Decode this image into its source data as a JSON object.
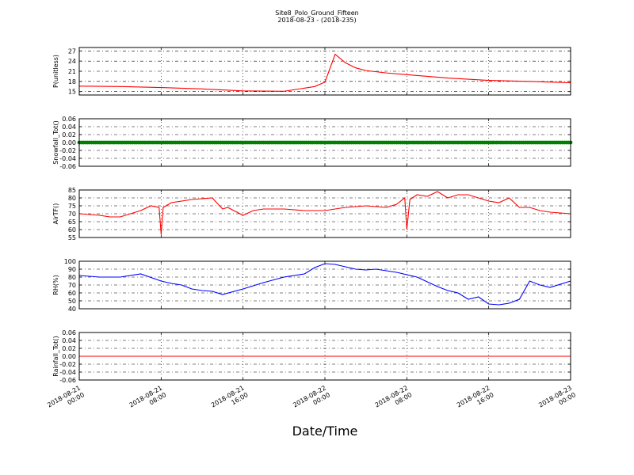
{
  "figure": {
    "title_line1": "Site8_Polo_Ground_Fifteen",
    "title_line2": "2018-08-23 - (2018-235)",
    "xlabel": "Date/Time"
  },
  "chart_data": [
    {
      "type": "line",
      "ylabel": "P(unitless)",
      "color": "#ff0000",
      "ylim": [
        14,
        28
      ],
      "yticks": [
        15,
        18,
        21,
        24,
        27
      ],
      "x_hours": [
        0,
        4,
        8,
        12,
        16,
        20,
        23,
        24,
        25,
        26,
        27,
        28,
        30,
        32,
        36,
        40,
        44,
        48
      ],
      "values": [
        16.6,
        16.5,
        16.2,
        15.8,
        15.2,
        15.1,
        16.5,
        17.8,
        26.0,
        23.5,
        22.0,
        21.2,
        20.5,
        20.0,
        19.0,
        18.3,
        18.0,
        17.6
      ],
      "grid": true
    },
    {
      "type": "scatter",
      "ylabel": "Snowfall_Tot()",
      "color": "#008000",
      "ylim": [
        -0.06,
        0.06
      ],
      "yticks": [
        "0.06",
        "0.04",
        "0.02",
        "0.00",
        "-0.02",
        "-0.04",
        "-0.06"
      ],
      "x_hours_range": [
        0,
        48
      ],
      "values": [
        0.0
      ],
      "grid": true
    },
    {
      "type": "line",
      "ylabel": "AirTF()",
      "color": "#ff0000",
      "ylim": [
        55,
        85
      ],
      "yticks": [
        55,
        60,
        65,
        70,
        75,
        80,
        85
      ],
      "x_hours": [
        0,
        2,
        3,
        4,
        6,
        7,
        7.8,
        8,
        8.2,
        9,
        11,
        13,
        14,
        14.5,
        16,
        17,
        18,
        20,
        22,
        24,
        26,
        28,
        30,
        31,
        31.8,
        32,
        32.3,
        33,
        34,
        35,
        36,
        37,
        38,
        39,
        40,
        41,
        42,
        43,
        44,
        45,
        46,
        48
      ],
      "values": [
        70,
        69,
        68,
        68,
        72,
        75,
        74,
        57,
        74,
        77,
        79,
        80,
        73,
        74,
        69,
        72,
        73,
        73,
        72,
        72,
        74,
        75,
        74,
        76,
        80,
        60,
        79,
        82,
        81,
        84,
        80,
        82,
        82,
        80,
        78,
        77,
        80,
        74,
        74,
        72,
        71,
        70
      ],
      "grid": true
    },
    {
      "type": "line",
      "ylabel": "RH(%)",
      "color": "#0000ff",
      "ylim": [
        40,
        100
      ],
      "yticks": [
        40,
        50,
        60,
        70,
        80,
        90,
        100
      ],
      "x_hours": [
        0,
        2,
        4,
        6,
        8,
        9,
        10,
        11,
        12,
        13,
        14,
        16,
        18,
        20,
        22,
        23,
        24,
        25,
        26,
        27,
        28,
        29,
        30,
        31,
        32,
        33,
        34,
        35,
        36,
        37,
        38,
        39,
        40,
        41,
        42,
        43,
        44,
        45,
        46,
        48
      ],
      "values": [
        82,
        80,
        80,
        84,
        75,
        72,
        70,
        65,
        63,
        62,
        58,
        65,
        73,
        80,
        84,
        92,
        97,
        96,
        93,
        90,
        89,
        90,
        88,
        86,
        83,
        80,
        74,
        68,
        63,
        60,
        52,
        55,
        46,
        45,
        47,
        52,
        75,
        70,
        67,
        75
      ],
      "grid": true
    },
    {
      "type": "line",
      "ylabel": "Rainfall_Tot()",
      "color": "#ff0000",
      "ylim": [
        -0.06,
        0.06
      ],
      "yticks": [
        "0.06",
        "0.04",
        "0.02",
        "0.00",
        "-0.02",
        "-0.04",
        "-0.06"
      ],
      "x_hours": [
        0,
        48
      ],
      "values": [
        0.0,
        0.0
      ],
      "grid": true
    }
  ],
  "x_axis": {
    "range_hours": [
      0,
      48
    ],
    "ticks": [
      {
        "hour": 0,
        "line1": "2018-08-21",
        "line2": "00:00"
      },
      {
        "hour": 8,
        "line1": "2018-08-21",
        "line2": "08:00"
      },
      {
        "hour": 16,
        "line1": "2018-08-21",
        "line2": "16:00"
      },
      {
        "hour": 24,
        "line1": "2018-08-22",
        "line2": "00:00"
      },
      {
        "hour": 32,
        "line1": "2018-08-22",
        "line2": "08:00"
      },
      {
        "hour": 40,
        "line1": "2018-08-22",
        "line2": "16:00"
      },
      {
        "hour": 48,
        "line1": "2018-08-23",
        "line2": "00:00"
      }
    ]
  }
}
